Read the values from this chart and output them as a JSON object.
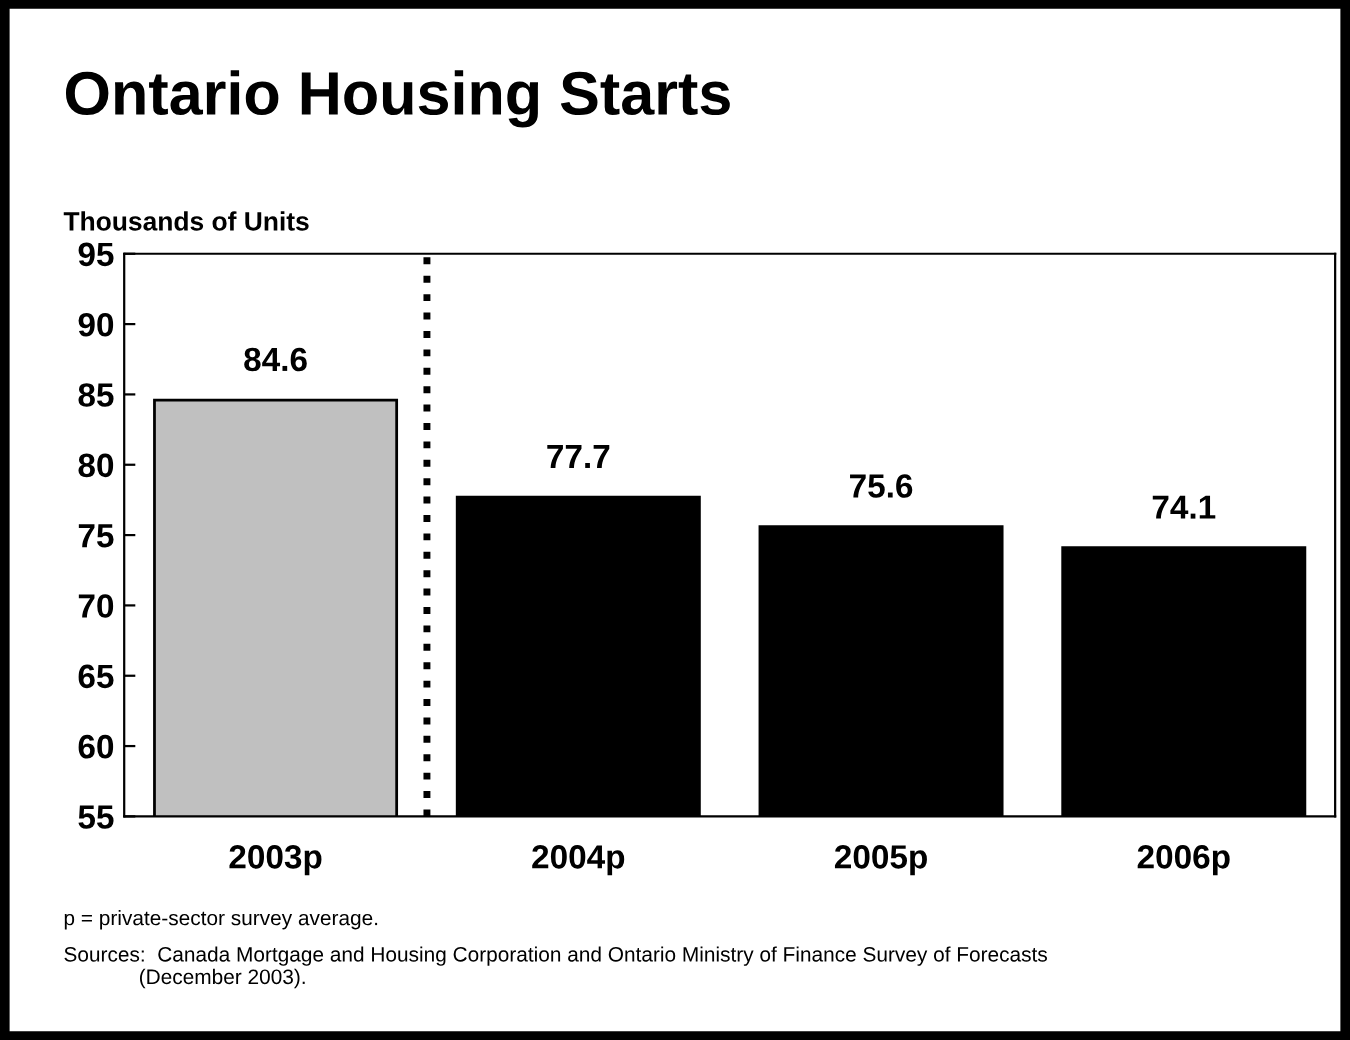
{
  "chart_data": {
    "type": "bar",
    "title": "Ontario Housing Starts",
    "ylabel": "Thousands of Units",
    "categories": [
      "2003p",
      "2004p",
      "2005p",
      "2006p"
    ],
    "values": [
      84.6,
      77.7,
      75.6,
      74.1
    ],
    "colors": [
      "#c0c0c0",
      "#000000",
      "#000000",
      "#000000"
    ],
    "ylim": [
      55,
      95
    ],
    "yticks": [
      55,
      60,
      65,
      70,
      75,
      80,
      85,
      90,
      95
    ],
    "data_labels": true,
    "grid": false,
    "legend": false,
    "annotations": [
      "p = private-sector survey average.",
      "Sources:  Canada Mortgage and Housing Corporation and Ontario Ministry of Finance Survey of Forecasts\n             (December 2003)."
    ]
  }
}
